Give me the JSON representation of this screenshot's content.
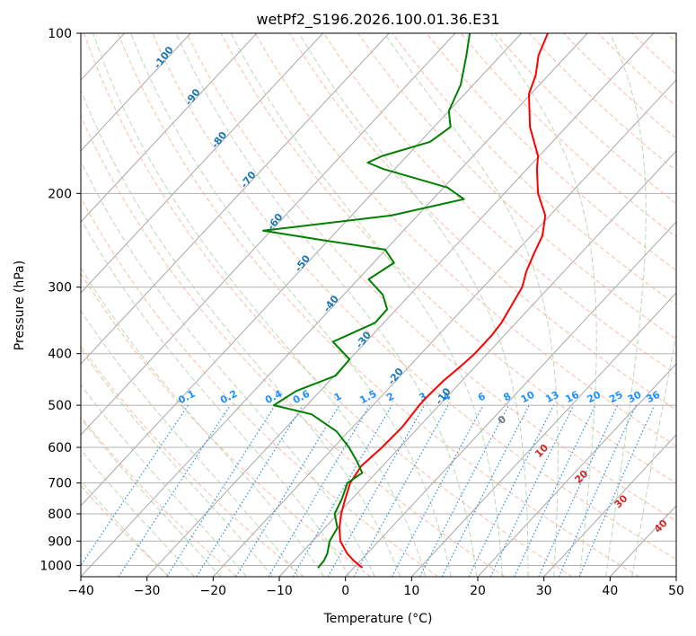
{
  "chart_data": {
    "type": "line",
    "title": "wetPf2_S196.2026.100.01.36.E31",
    "xlabel": "Temperature (°C)",
    "ylabel": "Pressure (hPa)",
    "xlim": [
      -40,
      50
    ],
    "ylim": [
      1050,
      100
    ],
    "x_ticks": [
      -40,
      -30,
      -20,
      -10,
      0,
      10,
      20,
      30,
      40,
      50
    ],
    "y_ticks": [
      1000,
      900,
      800,
      700,
      600,
      500,
      400,
      300,
      200,
      100
    ],
    "skew_degrees_per_log_unit": 75,
    "series": [
      {
        "name": "Temperature",
        "color": "#ff0000",
        "p": [
          1010,
          980,
          950,
          900,
          850,
          800,
          750,
          700,
          650,
          600,
          550,
          500,
          480,
          450,
          420,
          400,
          370,
          350,
          320,
          300,
          280,
          260,
          240,
          220,
          200,
          180,
          170,
          150,
          130,
          120,
          110,
          100
        ],
        "t": [
          1.3,
          -1.0,
          -3.0,
          -5.8,
          -7.8,
          -9.5,
          -11.0,
          -12.5,
          -13.2,
          -12.7,
          -12.5,
          -13.0,
          -13.0,
          -12.8,
          -12.2,
          -11.9,
          -11.9,
          -12.2,
          -13.3,
          -14.1,
          -15.7,
          -17.0,
          -18.3,
          -20.7,
          -24.9,
          -28.5,
          -30.2,
          -35.5,
          -40.3,
          -41.9,
          -44.3,
          -46.0
        ]
      },
      {
        "name": "Dewpoint",
        "color": "#008000",
        "p": [
          1010,
          980,
          950,
          900,
          850,
          800,
          750,
          700,
          670,
          640,
          600,
          560,
          520,
          500,
          470,
          440,
          410,
          380,
          350,
          330,
          310,
          290,
          270,
          255,
          245,
          235,
          220,
          205,
          195,
          180,
          175,
          170,
          160,
          150,
          140,
          125,
          110,
          100
        ],
        "t": [
          -5.4,
          -5.5,
          -6.0,
          -7.4,
          -8.1,
          -10.5,
          -11.5,
          -12.9,
          -12.1,
          -14.3,
          -17.7,
          -21.8,
          -28.0,
          -35.0,
          -33.6,
          -29.8,
          -30.0,
          -35.0,
          -31.3,
          -31.4,
          -34.1,
          -38.4,
          -36.9,
          -40.1,
          -50.6,
          -61.2,
          -44.0,
          -35.3,
          -39.4,
          -51.7,
          -55.0,
          -53.7,
          -48.5,
          -47.5,
          -50.0,
          -51.9,
          -55.2,
          -57.8
        ]
      }
    ],
    "isotherm_labels": [
      "-100",
      "-90",
      "-80",
      "-70",
      "-60",
      "-50",
      "-40",
      "-30",
      "-20",
      "-10"
    ],
    "mixing_ratio_labels": [
      "0.1",
      "0.2",
      "0.4",
      "0.6",
      "1",
      "1.5",
      "2",
      "3",
      "4",
      "6",
      "8",
      "10",
      "13",
      "16",
      "20",
      "25",
      "30",
      "36"
    ],
    "moist_adiabat_labels": [
      "0",
      "10",
      "20",
      "30",
      "40"
    ],
    "grid": true
  }
}
